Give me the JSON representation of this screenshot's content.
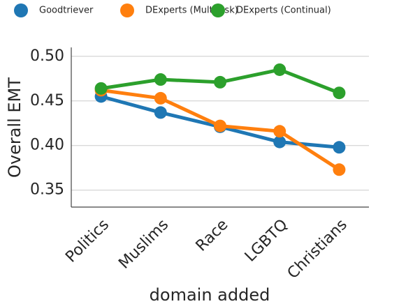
{
  "chart_data": {
    "type": "line",
    "x_label": "domain added",
    "y_label": "Overall EMT",
    "categories": [
      "Politics",
      "Muslims",
      "Race",
      "LGBTQ",
      "Christians"
    ],
    "series": [
      {
        "name": "Goodtriever",
        "color": "#1f77b4",
        "values": [
          0.455,
          0.437,
          0.421,
          0.404,
          0.398
        ]
      },
      {
        "name": "DExperts (Multitask)",
        "color": "#ff7f0e",
        "values": [
          0.462,
          0.453,
          0.422,
          0.416,
          0.373
        ]
      },
      {
        "name": "DExperts (Continual)",
        "color": "#2ca02c",
        "values": [
          0.464,
          0.474,
          0.471,
          0.485,
          0.459
        ]
      }
    ],
    "ylim": [
      0.331,
      0.51
    ],
    "yticks": [
      0.35,
      {
        "value": 0.4,
        "label": "0.40"
      },
      0.45,
      {
        "value": 0.5,
        "label": "0.50"
      }
    ],
    "grid": true,
    "legend": "top"
  }
}
